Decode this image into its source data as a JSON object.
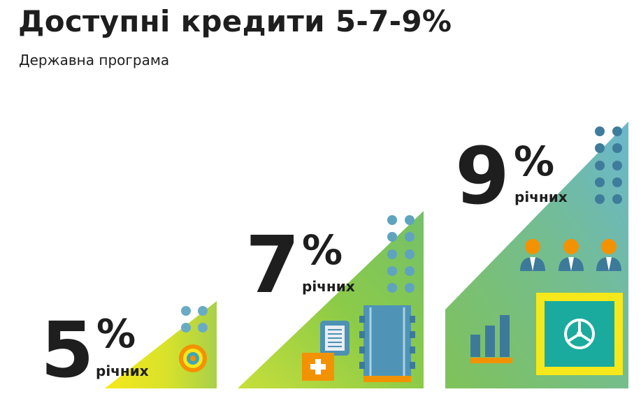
{
  "header": {
    "title": "Доступні кредити 5-7-9%",
    "subtitle": "Державна програма"
  },
  "tiers": [
    {
      "rate": "5",
      "percent_sign": "%",
      "label": "річних"
    },
    {
      "rate": "7",
      "percent_sign": "%",
      "label": "річних"
    },
    {
      "rate": "9",
      "percent_sign": "%",
      "label": "річних"
    }
  ],
  "colors": {
    "text": "#1e1e1e",
    "yellow": "#f2e11a",
    "green": "#8cc63f",
    "teal": "#6cb7c9",
    "blue_dark": "#3d7a9a",
    "dot_blue": "#5fa3bf",
    "orange": "#f39200"
  }
}
